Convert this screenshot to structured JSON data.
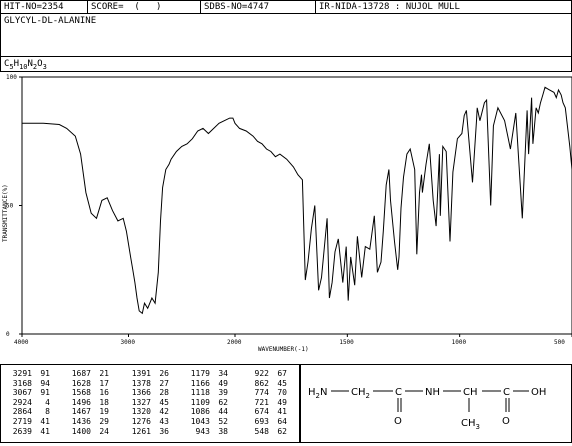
{
  "header": {
    "hit_no": "HIT-NO=2354",
    "score": "SCORE=  (   )",
    "sdbs_no": "SDBS-NO=4747",
    "ir_info": "IR-NIDA-13728 : NUJOL MULL",
    "compound": "GLYCYL-DL-ALANINE",
    "formula_parts": {
      "c": "C",
      "c_n": "5",
      "h": "H",
      "h_n": "10",
      "n": "N",
      "n_n": "2",
      "o": "O",
      "o_n": "3"
    }
  },
  "chart_data": {
    "type": "line",
    "xlabel": "WAVENUMBER(-1)",
    "ylabel": "TRANSMITTANCE(%)",
    "xlim": [
      4000,
      500
    ],
    "ylim": [
      0,
      100
    ],
    "x_ticks": [
      "4000",
      "3000",
      "2000",
      "1500",
      "1000",
      "500"
    ],
    "y_ticks": [
      "0",
      "50",
      "100"
    ],
    "series": [
      {
        "x": [
          4000,
          3800,
          3650,
          3580,
          3500,
          3450,
          3400,
          3350,
          3300,
          3250,
          3200,
          3150,
          3100,
          3050,
          3020,
          3000,
          2980,
          2960,
          2940,
          2920,
          2900,
          2870,
          2850,
          2820,
          2780,
          2750,
          2720,
          2700,
          2680,
          2650,
          2620,
          2600,
          2550,
          2500,
          2450,
          2400,
          2350,
          2300,
          2250,
          2200,
          2150,
          2100,
          2050,
          2020,
          2000,
          1980,
          1950,
          1920,
          1900,
          1880,
          1860,
          1840,
          1820,
          1800,
          1770,
          1740,
          1720,
          1700,
          1687,
          1675,
          1660,
          1645,
          1628,
          1615,
          1600,
          1590,
          1580,
          1568,
          1555,
          1540,
          1520,
          1505,
          1496,
          1485,
          1467,
          1455,
          1436,
          1420,
          1400,
          1380,
          1366,
          1350,
          1340,
          1327,
          1315,
          1308,
          1290,
          1276,
          1270,
          1261,
          1250,
          1235,
          1220,
          1200,
          1191,
          1179,
          1170,
          1166,
          1150,
          1135,
          1118,
          1105,
          1090,
          1086,
          1075,
          1060,
          1043,
          1030,
          1010,
          990,
          980,
          970,
          943,
          925,
          922,
          910,
          890,
          880,
          862,
          850,
          830,
          800,
          774,
          750,
          721,
          700,
          693,
          680,
          674,
          660,
          650,
          640,
          630,
          620,
          600,
          580,
          570,
          560,
          548,
          540,
          530,
          510,
          500
        ],
        "y": [
          82,
          82,
          81.5,
          80,
          77,
          70,
          55,
          47,
          45,
          52,
          53,
          48,
          44,
          45,
          40,
          35,
          30,
          25,
          20,
          14,
          9,
          8,
          12,
          10,
          14,
          12,
          24,
          44,
          57,
          64,
          66,
          68,
          71,
          73,
          74,
          76,
          79,
          80,
          78,
          80,
          82,
          83,
          84,
          84,
          82,
          80,
          79,
          77,
          75,
          74,
          72,
          71,
          69,
          70,
          68,
          65,
          62,
          60,
          21,
          28,
          41,
          50,
          17,
          22,
          36,
          45,
          14,
          20,
          32,
          37,
          20,
          34,
          13,
          30,
          19,
          38,
          22,
          34,
          33,
          46,
          24,
          28,
          40,
          58,
          64,
          52,
          36,
          25,
          30,
          49,
          61,
          70,
          72,
          64,
          31,
          55,
          62,
          55,
          66,
          74,
          52,
          42,
          70,
          46,
          73,
          71,
          36,
          63,
          76,
          78,
          85,
          87,
          59,
          83,
          88,
          83,
          90,
          91,
          50,
          81,
          88,
          83,
          72,
          86,
          45,
          87,
          70,
          92,
          74,
          88,
          86,
          90,
          93,
          96,
          95,
          94,
          92,
          95,
          93,
          90,
          88,
          73,
          64
        ]
      }
    ]
  },
  "peaks": {
    "col1": [
      [
        "3291",
        "91"
      ],
      [
        "3168",
        "94"
      ],
      [
        "3067",
        "91"
      ],
      [
        "2924",
        "4"
      ],
      [
        "2864",
        "8"
      ],
      [
        "2719",
        "41"
      ],
      [
        "2639",
        "41"
      ]
    ],
    "col2": [
      [
        "1687",
        "21"
      ],
      [
        "1628",
        "17"
      ],
      [
        "1568",
        "16"
      ],
      [
        "1496",
        "18"
      ],
      [
        "1467",
        "19"
      ],
      [
        "1436",
        "29"
      ],
      [
        "1400",
        "24"
      ]
    ],
    "col3": [
      [
        "1391",
        "26"
      ],
      [
        "1378",
        "27"
      ],
      [
        "1366",
        "28"
      ],
      [
        "1327",
        "45"
      ],
      [
        "1320",
        "42"
      ],
      [
        "1276",
        "43"
      ],
      [
        "1261",
        "36"
      ]
    ],
    "col4": [
      [
        "1179",
        "34"
      ],
      [
        "1166",
        "49"
      ],
      [
        "1118",
        "39"
      ],
      [
        "1109",
        "62"
      ],
      [
        "1086",
        "44"
      ],
      [
        "1043",
        "52"
      ],
      [
        "943",
        "38"
      ]
    ],
    "col5": [
      [
        "922",
        "67"
      ],
      [
        "862",
        "45"
      ],
      [
        "774",
        "70"
      ],
      [
        "721",
        "49"
      ],
      [
        "674",
        "41"
      ],
      [
        "693",
        "64"
      ],
      [
        "548",
        "62"
      ]
    ]
  },
  "structure": {
    "h2n": "H2N",
    "ch2": "CH2",
    "c1": "C",
    "nh": "NH",
    "ch": "CH",
    "c2": "C",
    "oh": "OH",
    "o1": "O",
    "o2": "O",
    "ch3": "CH3",
    "bond": "—"
  }
}
